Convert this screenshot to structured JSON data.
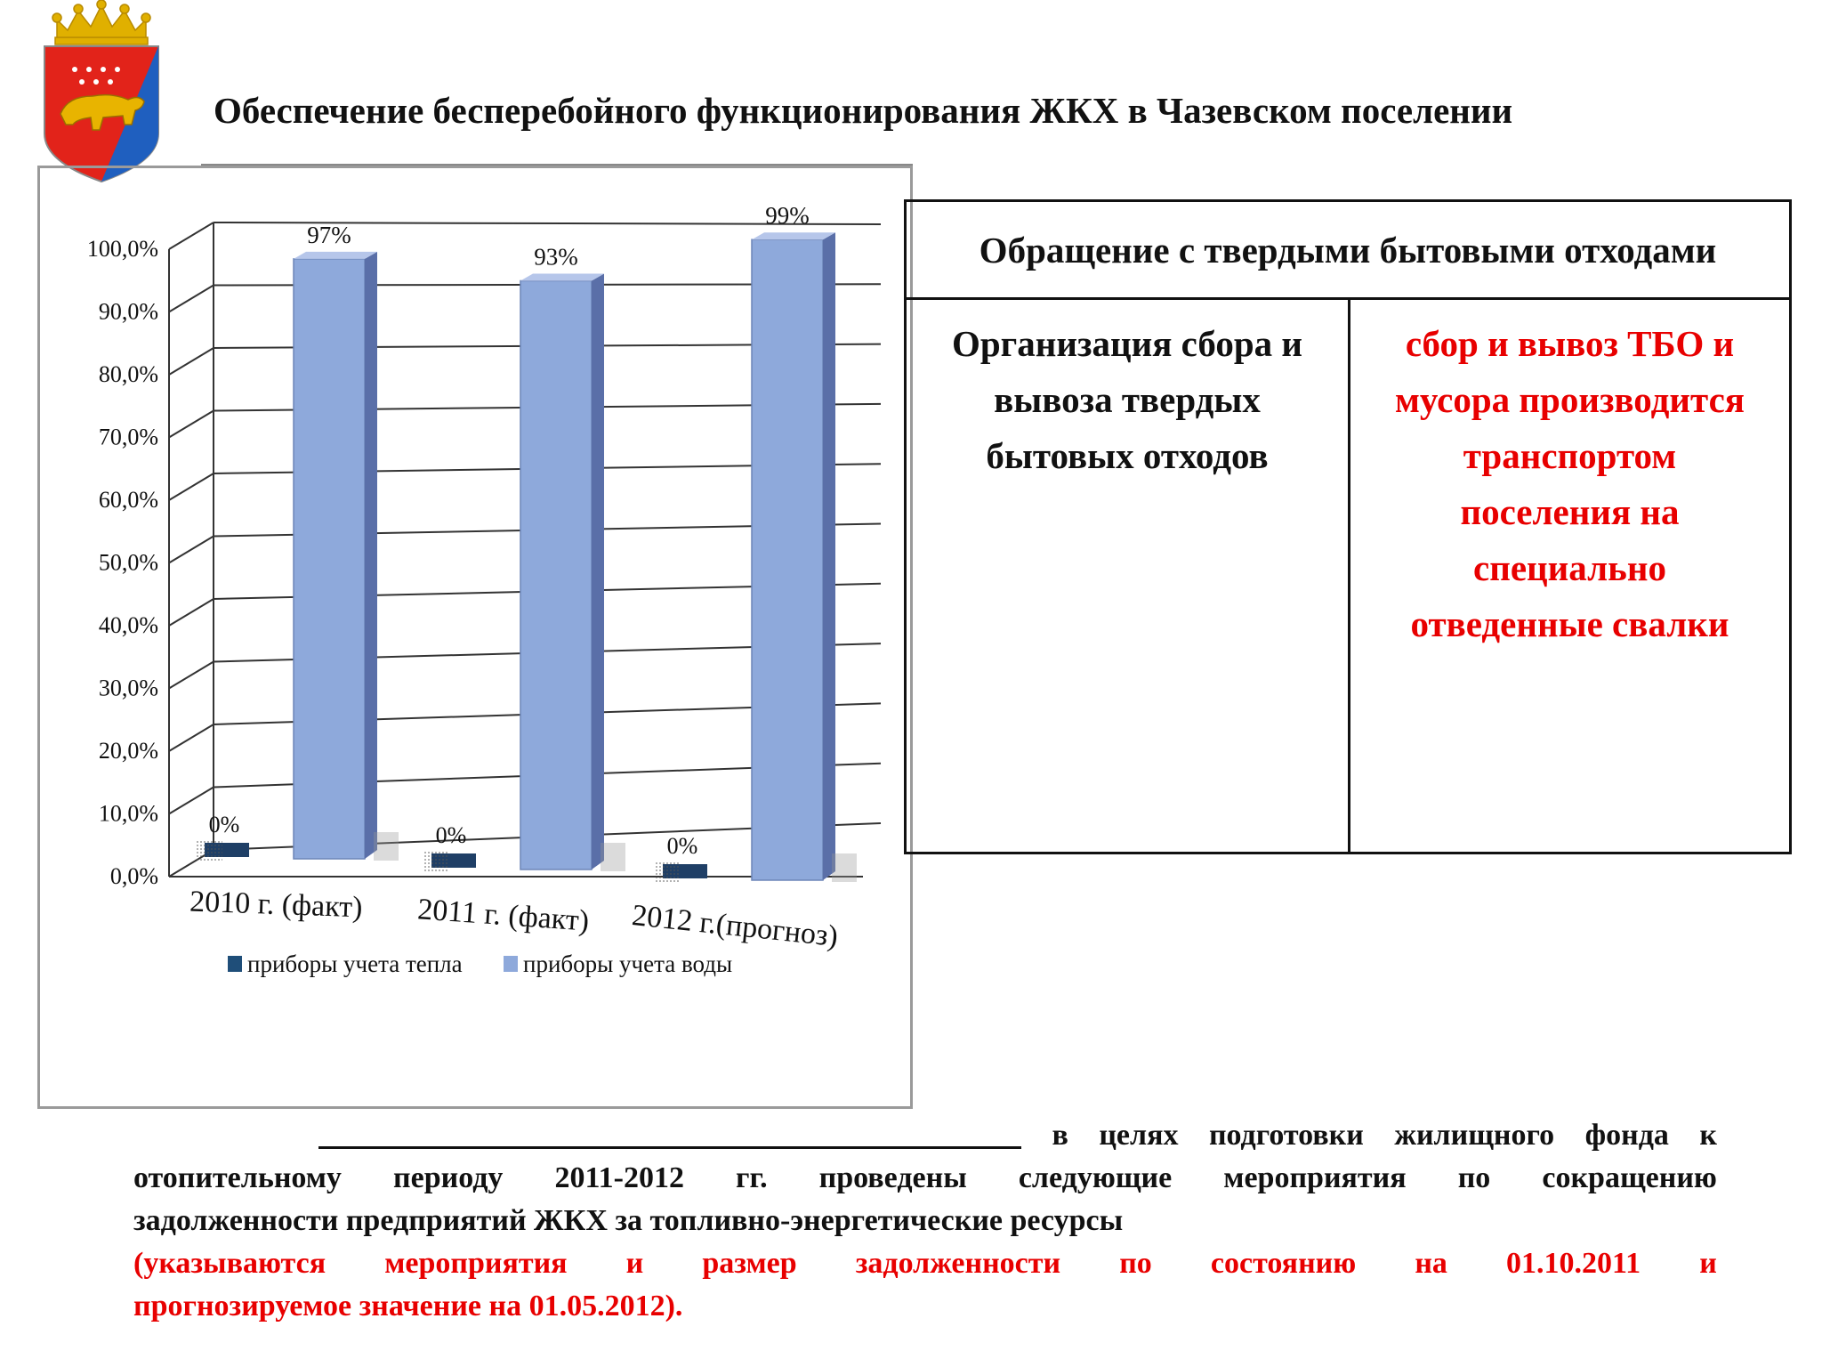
{
  "title": "Обеспечение бесперебойного функционирования ЖКХ в Чазевском поселении",
  "table": {
    "header": "Обращение с твердыми бытовыми отходами",
    "left_lines": [
      "Организация сбора и",
      "вывоза твердых",
      "бытовых отходов"
    ],
    "right_lines": [
      "сбор и вывоз ТБО и",
      "мусора производится",
      "транспортом",
      "поселения на",
      "специально",
      "отведенные свалки"
    ]
  },
  "bottom": {
    "line1_rest": [
      "в",
      "целях",
      "подготовки",
      "жилищного",
      "фонда",
      "к"
    ],
    "line2": [
      "отопительному",
      "периоду",
      "2011-2012",
      "гг.",
      "проведены",
      "следующие",
      "мероприятия",
      "по",
      "сокращению"
    ],
    "line3": "задолженности предприятий ЖКХ за топливно-энергетические ресурсы",
    "line4": [
      "(указываются",
      "мероприятия",
      "и",
      "размер",
      "задолженности",
      "по",
      "состоянию",
      "на",
      "01.10.2011",
      "и"
    ],
    "line5": "прогнозируемое значение на 01.05.2012)."
  },
  "chart_data": {
    "type": "bar",
    "categories": [
      "2010 г. (факт)",
      "2011 г. (факт)",
      "2012 г.(прогноз)"
    ],
    "series": [
      {
        "name": "приборы учета тепла",
        "values": [
          0,
          0,
          0
        ],
        "labels": [
          "0%",
          "0%",
          "0%"
        ],
        "color": "#1f4e79"
      },
      {
        "name": "приборы учета воды",
        "values": [
          97,
          93,
          99
        ],
        "labels": [
          "97%",
          "93%",
          "99%"
        ],
        "color": "#8ea9db"
      }
    ],
    "yticks": [
      "0,0%",
      "10,0%",
      "20,0%",
      "30,0%",
      "40,0%",
      "50,0%",
      "60,0%",
      "70,0%",
      "80,0%",
      "90,0%",
      "100,0%"
    ],
    "ylim": [
      0,
      100
    ],
    "legend": "bottom",
    "grid": true
  }
}
